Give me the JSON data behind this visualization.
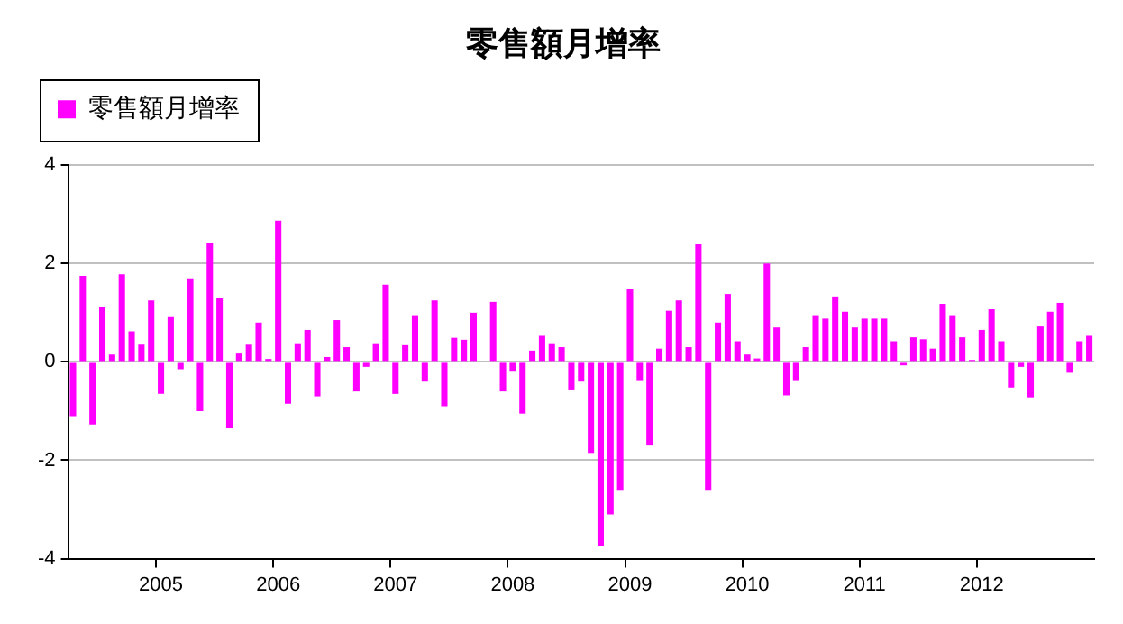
{
  "chart_data": {
    "type": "bar",
    "title": "零售額月增率",
    "categories": [
      null,
      null,
      null,
      null,
      null,
      null,
      null,
      null,
      null,
      "2005",
      null,
      null,
      null,
      null,
      null,
      null,
      null,
      null,
      null,
      null,
      null,
      "2006",
      null,
      null,
      null,
      null,
      null,
      null,
      null,
      null,
      null,
      null,
      null,
      "2007",
      null,
      null,
      null,
      null,
      null,
      null,
      null,
      null,
      null,
      null,
      null,
      "2008",
      null,
      null,
      null,
      null,
      null,
      null,
      null,
      null,
      null,
      null,
      null,
      "2009",
      null,
      null,
      null,
      null,
      null,
      null,
      null,
      null,
      null,
      null,
      null,
      "2010",
      null,
      null,
      null,
      null,
      null,
      null,
      null,
      null,
      null,
      null,
      null,
      "2011",
      null,
      null,
      null,
      null,
      null,
      null,
      null,
      null,
      null,
      null,
      null,
      "2012",
      null,
      null,
      null,
      null,
      null,
      null,
      null,
      null,
      null,
      null,
      null
    ],
    "series": [
      {
        "name": "零售額月增率",
        "color": "#ff00ff",
        "values": [
          -1.1,
          1.75,
          -1.27,
          1.12,
          0.15,
          1.78,
          0.62,
          0.35,
          1.25,
          -0.65,
          0.93,
          -0.15,
          1.7,
          -1.0,
          2.42,
          1.3,
          -1.35,
          0.17,
          0.35,
          0.8,
          0.06,
          2.87,
          -0.85,
          0.38,
          0.65,
          -0.7,
          0.1,
          0.85,
          0.3,
          -0.6,
          -0.1,
          0.38,
          1.57,
          -0.65,
          0.34,
          0.95,
          -0.4,
          1.25,
          -0.9,
          0.49,
          0.45,
          1.0,
          0,
          1.22,
          -0.6,
          -0.18,
          -1.05,
          0.23,
          0.53,
          0.38,
          0.3,
          -0.56,
          -0.4,
          -1.85,
          -3.75,
          -3.1,
          -2.6,
          1.48,
          -0.37,
          -1.7,
          0.27,
          1.04,
          1.25,
          0.3,
          2.39,
          -2.6,
          0.8,
          1.38,
          0.42,
          0.15,
          0.07,
          2.0,
          0.7,
          -0.68,
          -0.37,
          0.3,
          0.95,
          0.88,
          1.33,
          1.02,
          0.7,
          0.88,
          0.88,
          0.88,
          0.42,
          -0.07,
          0.5,
          0.46,
          0.27,
          1.18,
          0.95,
          0.5,
          0.04,
          0.65,
          1.07,
          0.42,
          -0.52,
          -0.1,
          -0.72,
          0.72,
          1.02,
          1.2,
          -0.22,
          0.42,
          0.53
        ]
      }
    ],
    "ylim": [
      -4,
      4
    ],
    "yticks": [
      -4,
      -2,
      0,
      2,
      4
    ],
    "grid": "y",
    "legend": "top left"
  }
}
